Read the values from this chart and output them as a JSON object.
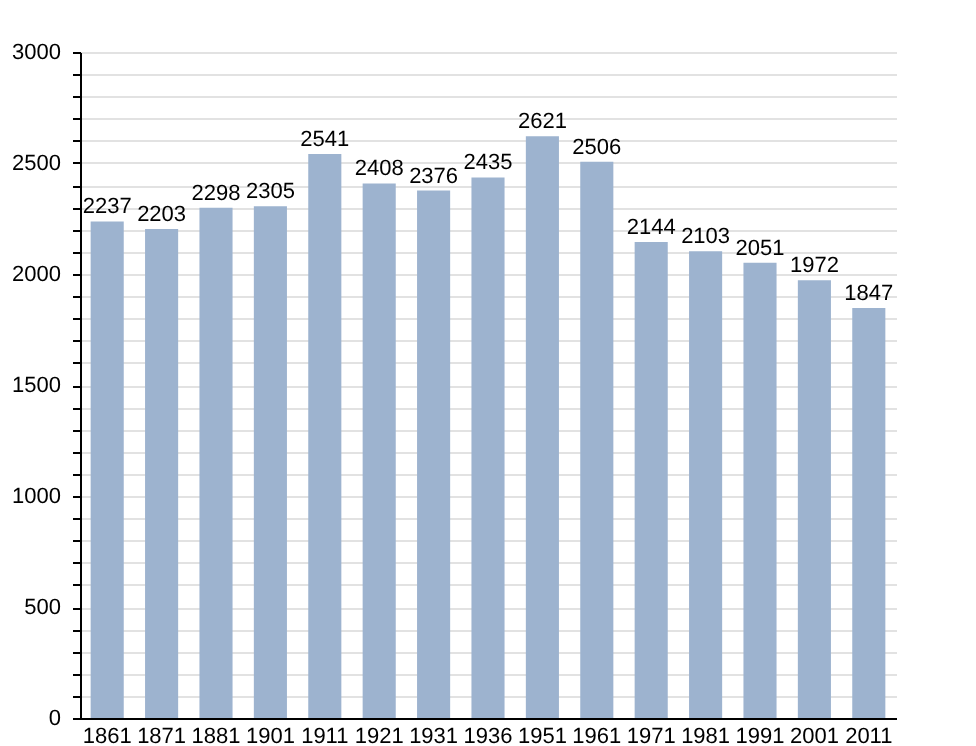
{
  "chart_data": {
    "type": "bar",
    "categories": [
      "1861",
      "1871",
      "1881",
      "1901",
      "1911",
      "1921",
      "1931",
      "1936",
      "1951",
      "1961",
      "1971",
      "1981",
      "1991",
      "2001",
      "2011"
    ],
    "values": [
      2237,
      2203,
      2298,
      2305,
      2541,
      2408,
      2376,
      2435,
      2621,
      2506,
      2144,
      2103,
      2051,
      1972,
      1847
    ],
    "color": "#9db3cf",
    "ylim": [
      0,
      3000
    ],
    "yticks": [
      0,
      {
        "value": 100,
        "label": null
      },
      {
        "value": 200,
        "label": null
      },
      {
        "value": 300,
        "label": null
      },
      {
        "value": 400,
        "label": null
      },
      500,
      {
        "value": 600,
        "label": null
      },
      {
        "value": 700,
        "label": null
      },
      {
        "value": 800,
        "label": null
      },
      {
        "value": 900,
        "label": null
      },
      1000,
      {
        "value": 1100,
        "label": null
      },
      {
        "value": 1200,
        "label": null
      },
      {
        "value": 1300,
        "label": null
      },
      {
        "value": 1400,
        "label": null
      },
      1500,
      {
        "value": 1600,
        "label": null
      },
      {
        "value": 1700,
        "label": null
      },
      {
        "value": 1800,
        "label": null
      },
      {
        "value": 1900,
        "label": null
      },
      2000,
      {
        "value": 2100,
        "label": null
      },
      {
        "value": 2200,
        "label": null
      },
      {
        "value": 2300,
        "label": null
      },
      {
        "value": 2400,
        "label": null
      },
      2500,
      {
        "value": 2600,
        "label": null
      },
      {
        "value": 2700,
        "label": null
      },
      {
        "value": 2800,
        "label": null
      },
      {
        "value": 2900,
        "label": null
      },
      3000
    ],
    "grid": "y",
    "data_labels": true
  }
}
